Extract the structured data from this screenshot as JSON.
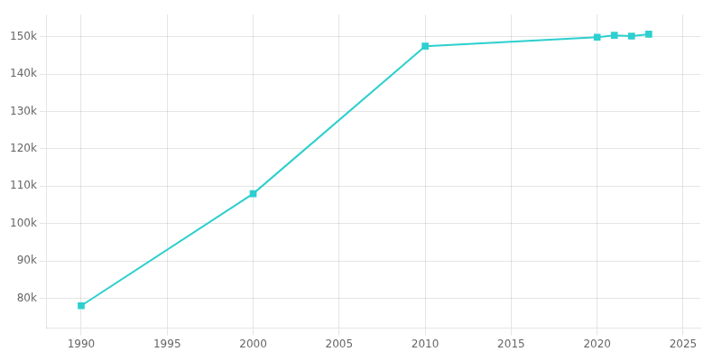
{
  "chart_data": {
    "type": "line",
    "x": [
      1990,
      2000,
      2010,
      2020,
      2021,
      2022,
      2023
    ],
    "values": [
      78000,
      108000,
      147500,
      149900,
      150400,
      150200,
      150700
    ],
    "color": "#2dcfcf",
    "marker": "square",
    "xlim": [
      1988,
      2026
    ],
    "xticks": [
      1990,
      1995,
      2000,
      2005,
      2010,
      2015,
      2020,
      2025
    ],
    "ylim": [
      72000,
      156000
    ],
    "yticks": [
      {
        "value": 80000,
        "label": "80k"
      },
      {
        "value": 90000,
        "label": "90k"
      },
      {
        "value": 100000,
        "label": "100k"
      },
      {
        "value": 110000,
        "label": "110k"
      },
      {
        "value": 120000,
        "label": "120k"
      },
      {
        "value": 130000,
        "label": "130k"
      },
      {
        "value": 140000,
        "label": "140k"
      },
      {
        "value": 150000,
        "label": "150k"
      }
    ],
    "grid": true
  }
}
